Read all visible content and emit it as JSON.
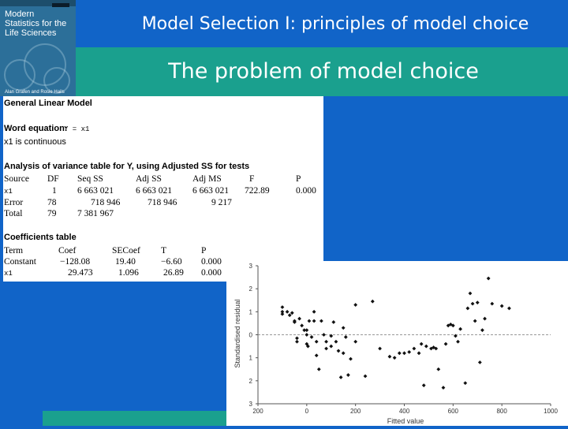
{
  "header": {
    "title": "Model Selection I: principles of model choice",
    "subtitle": "The problem of model choice"
  },
  "book": {
    "title_lines": [
      "Modern",
      "Statistics for the",
      "Life Sciences"
    ],
    "authors": "Alan Grafen and Rosie Hails"
  },
  "glm": {
    "heading": "General Linear Model",
    "word_eq_label": "Word equation:",
    "word_eq_value": "Y = x1",
    "continuous": "x1 is continuous",
    "anova_title": "Analysis of variance table for Y, using Adjusted SS for tests",
    "anova_headers": [
      "Source",
      "DF",
      "Seq SS",
      "Adj SS",
      "Adj MS",
      "F",
      "P"
    ],
    "anova_rows": [
      [
        "x1",
        "1",
        "6 663 021",
        "6 663 021",
        "6 663 021",
        "722.89",
        "0.000"
      ],
      [
        "Error",
        "78",
        "718 946",
        "718 946",
        "9 217",
        "",
        ""
      ],
      [
        "Total",
        "79",
        "7 381 967",
        "",
        "",
        "",
        ""
      ]
    ],
    "coef_title": "Coefficients table",
    "coef_headers": [
      "Term",
      "Coef",
      "SECoef",
      "T",
      "P"
    ],
    "coef_rows": [
      [
        "Constant",
        "−128.08",
        "19.40",
        "−6.60",
        "0.000"
      ],
      [
        "x1",
        "29.473",
        "1.096",
        "26.89",
        "0.000"
      ]
    ]
  },
  "chart_data": {
    "type": "scatter",
    "xlabel": "Fitted value",
    "ylabel": "Standardised residual",
    "xlim": [
      -200,
      1000
    ],
    "ylim": [
      -3,
      3
    ],
    "xticks": [
      -200,
      0,
      200,
      400,
      600,
      800,
      1000
    ],
    "xtick_labels": [
      "200",
      "0",
      "200",
      "400",
      "600",
      "800",
      "1000"
    ],
    "yticks": [
      3,
      2,
      1,
      0,
      -1,
      -2,
      -3
    ],
    "ytick_labels": [
      "3",
      "2",
      "1",
      "0",
      "1",
      "2",
      "3"
    ],
    "reference_line": 0,
    "points": [
      [
        -100,
        1.2
      ],
      [
        -100,
        0.9
      ],
      [
        -100,
        1.0
      ],
      [
        -80,
        1.0
      ],
      [
        -70,
        0.85
      ],
      [
        -60,
        0.95
      ],
      [
        -50,
        0.6
      ],
      [
        -50,
        0.55
      ],
      [
        -40,
        -0.15
      ],
      [
        -40,
        -0.3
      ],
      [
        -30,
        0.7
      ],
      [
        -20,
        0.4
      ],
      [
        -10,
        0.2
      ],
      [
        0,
        0.2
      ],
      [
        0,
        -0.4
      ],
      [
        0,
        0.0
      ],
      [
        5,
        -0.5
      ],
      [
        10,
        0.6
      ],
      [
        20,
        -0.1
      ],
      [
        30,
        0.6
      ],
      [
        30,
        1.0
      ],
      [
        40,
        -0.3
      ],
      [
        40,
        -0.9
      ],
      [
        50,
        -1.5
      ],
      [
        60,
        0.6
      ],
      [
        70,
        0.0
      ],
      [
        80,
        -0.3
      ],
      [
        80,
        -0.6
      ],
      [
        100,
        -0.05
      ],
      [
        100,
        -0.5
      ],
      [
        110,
        0.55
      ],
      [
        120,
        -0.3
      ],
      [
        130,
        -0.7
      ],
      [
        140,
        -1.85
      ],
      [
        150,
        0.3
      ],
      [
        150,
        -0.8
      ],
      [
        160,
        -0.1
      ],
      [
        170,
        -1.75
      ],
      [
        180,
        -1.05
      ],
      [
        200,
        -0.3
      ],
      [
        200,
        1.3
      ],
      [
        240,
        -1.8
      ],
      [
        270,
        1.45
      ],
      [
        300,
        -0.6
      ],
      [
        340,
        -0.95
      ],
      [
        360,
        -1.0
      ],
      [
        380,
        -0.8
      ],
      [
        400,
        -0.8
      ],
      [
        420,
        -0.75
      ],
      [
        440,
        -0.6
      ],
      [
        460,
        -0.8
      ],
      [
        470,
        -0.4
      ],
      [
        480,
        -2.2
      ],
      [
        490,
        -0.5
      ],
      [
        510,
        -0.6
      ],
      [
        520,
        -0.55
      ],
      [
        530,
        -0.6
      ],
      [
        540,
        -1.5
      ],
      [
        560,
        -2.3
      ],
      [
        570,
        -0.4
      ],
      [
        580,
        0.4
      ],
      [
        590,
        0.45
      ],
      [
        600,
        0.4
      ],
      [
        610,
        -0.05
      ],
      [
        620,
        -0.3
      ],
      [
        630,
        0.25
      ],
      [
        650,
        -2.1
      ],
      [
        660,
        1.15
      ],
      [
        670,
        1.8
      ],
      [
        680,
        1.35
      ],
      [
        690,
        0.6
      ],
      [
        700,
        1.4
      ],
      [
        710,
        -1.2
      ],
      [
        720,
        0.2
      ],
      [
        730,
        0.7
      ],
      [
        745,
        2.45
      ],
      [
        760,
        1.35
      ],
      [
        800,
        1.25
      ],
      [
        830,
        1.15
      ]
    ]
  }
}
